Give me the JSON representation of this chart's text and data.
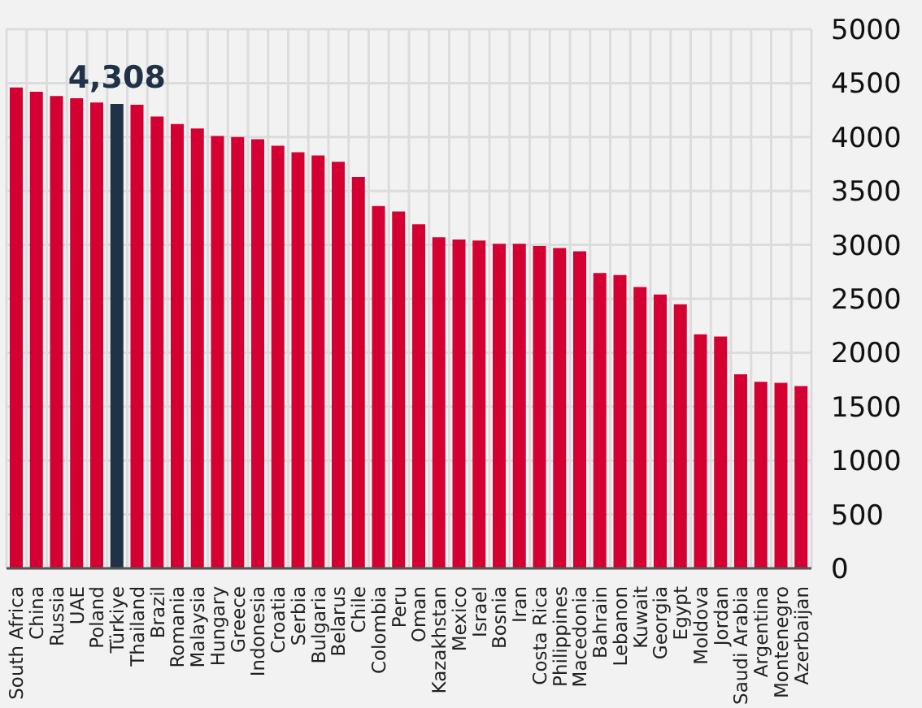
{
  "chart_data": {
    "type": "bar",
    "categories": [
      "South Africa",
      "China",
      "Russia",
      "UAE",
      "Poland",
      "Türkiye",
      "Thailand",
      "Brazil",
      "Romania",
      "Malaysia",
      "Hungary",
      "Greece",
      "Indonesia",
      "Croatia",
      "Serbia",
      "Bulgaria",
      "Belarus",
      "Chile",
      "Colombia",
      "Peru",
      "Oman",
      "Kazakhstan",
      "Mexico",
      "Israel",
      "Bosnia",
      "Iran",
      "Costa Rica",
      "Philippines",
      "Macedonia",
      "Bahrain",
      "Lebanon",
      "Kuwait",
      "Georgia",
      "Egypt",
      "Moldova",
      "Jordan",
      "Saudi Arabia",
      "Argentina",
      "Montenegro",
      "Azerbaijan"
    ],
    "values": [
      4460,
      4420,
      4380,
      4360,
      4320,
      4308,
      4300,
      4190,
      4120,
      4080,
      4010,
      4000,
      3980,
      3920,
      3860,
      3830,
      3770,
      3630,
      3360,
      3310,
      3190,
      3070,
      3050,
      3040,
      3010,
      3010,
      2990,
      2970,
      2940,
      2740,
      2720,
      2610,
      2540,
      2450,
      2170,
      2150,
      1800,
      1730,
      1720,
      1690
    ],
    "colors": [
      "#d40032",
      "#d40032",
      "#d40032",
      "#d40032",
      "#d40032",
      "#1f3247",
      "#d40032",
      "#d40032",
      "#d40032",
      "#d40032",
      "#d40032",
      "#d40032",
      "#d40032",
      "#d40032",
      "#d40032",
      "#d40032",
      "#d40032",
      "#d40032",
      "#d40032",
      "#d40032",
      "#d40032",
      "#d40032",
      "#d40032",
      "#d40032",
      "#d40032",
      "#d40032",
      "#d40032",
      "#d40032",
      "#d40032",
      "#d40032",
      "#d40032",
      "#d40032",
      "#d40032",
      "#d40032",
      "#d40032",
      "#d40032",
      "#d40032",
      "#d40032",
      "#d40032",
      "#d40032"
    ],
    "value_labels": [
      null,
      null,
      null,
      null,
      null,
      "4,308",
      null,
      null,
      null,
      null,
      null,
      null,
      null,
      null,
      null,
      null,
      null,
      null,
      null,
      null,
      null,
      null,
      null,
      null,
      null,
      null,
      null,
      null,
      null,
      null,
      null,
      null,
      null,
      null,
      null,
      null,
      null,
      null,
      null,
      null
    ],
    "ylim": [
      0,
      5000
    ],
    "yticks": [
      0,
      500,
      1000,
      1500,
      2000,
      2500,
      3000,
      3500,
      4000,
      4500,
      5000
    ],
    "grid": true
  }
}
